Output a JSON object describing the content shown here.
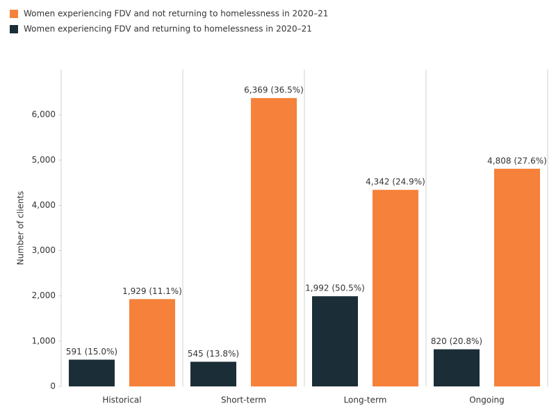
{
  "chart_data": {
    "type": "bar",
    "y_label": "Number of clients",
    "categories": [
      "Historical",
      "Short-term",
      "Long-term",
      "Ongoing"
    ],
    "series": [
      {
        "name": "Women experiencing FDV and not returning to homelessness in 2020–21",
        "color": "#f5813a",
        "values": [
          1929,
          6369,
          4342,
          4808
        ],
        "value_labels": [
          "1,929 (11.1%)",
          "6,369 (36.5%)",
          "4,342 (24.9%)",
          "4,808 (27.6%)"
        ]
      },
      {
        "name": "Women experiencing FDV and returning to homelessness in 2020–21",
        "color": "#1b2e38",
        "values": [
          591,
          545,
          1992,
          820
        ],
        "value_labels": [
          "591 (15.0%)",
          "545 (13.8%)",
          "1,992 (50.5%)",
          "820 (20.8%)"
        ]
      }
    ],
    "ylim": [
      0,
      7000
    ],
    "yticks": [
      0,
      {
        "value": 1000,
        "label": "1,000"
      },
      {
        "value": 2000,
        "label": "2,000"
      },
      {
        "value": 3000,
        "label": "3,000"
      },
      {
        "value": 4000,
        "label": "4,000"
      },
      {
        "value": 5000,
        "label": "5,000"
      },
      {
        "value": 6000,
        "label": "6,000"
      }
    ],
    "grid": false
  }
}
